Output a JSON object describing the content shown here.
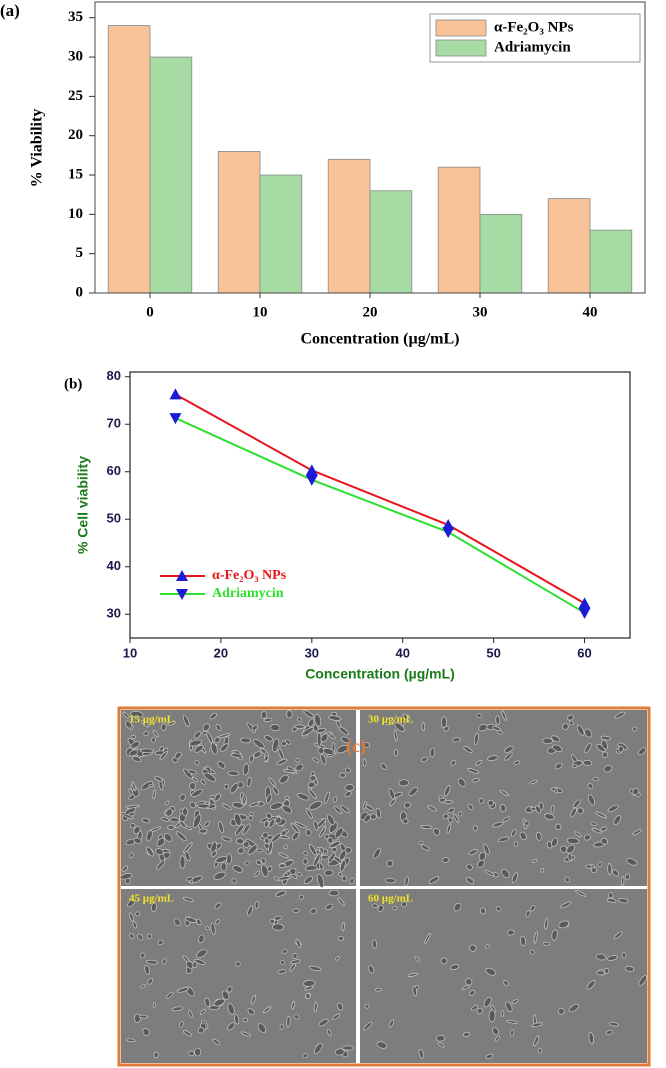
{
  "chart_data": [
    {
      "type": "bar",
      "panel_label": "(a)",
      "categories": [
        "0",
        "10",
        "20",
        "30",
        "40"
      ],
      "series": [
        {
          "name": "α-Fe₂O₃ NPs",
          "color": "#f9c39a",
          "values": [
            34,
            18,
            17,
            16,
            12
          ]
        },
        {
          "name": "Adriamycin",
          "color": "#a6dba4",
          "values": [
            30,
            15,
            13,
            10,
            8
          ]
        }
      ],
      "ylim": [
        0,
        37
      ],
      "yticks": [
        0,
        5,
        10,
        15,
        20,
        25,
        30,
        35
      ],
      "x_label": "Concentration (µg/mL)",
      "y_label": "% Viability",
      "legend": "upper right"
    },
    {
      "type": "line",
      "panel_label": "(b)",
      "x": [
        15,
        30,
        45,
        60
      ],
      "series": [
        {
          "name": "α-Fe₂O₃ NPs",
          "color": "#e8141c",
          "marker": "triangle-up",
          "marker_color": "#1c1cd6",
          "values": [
            76.3,
            60.3,
            48.8,
            32.3
          ]
        },
        {
          "name": "Adriamycin",
          "color": "#2ee02e",
          "marker": "triangle-down",
          "marker_color": "#1c1cd6",
          "values": [
            71.3,
            58.3,
            47.3,
            30.3
          ]
        }
      ],
      "xlim": [
        10,
        65
      ],
      "xticks": [
        10,
        20,
        30,
        40,
        50,
        60
      ],
      "ylim": [
        25,
        81
      ],
      "yticks": [
        30,
        40,
        50,
        60,
        70,
        80
      ],
      "x_label": "Concentration (µg/mL)",
      "y_label": "% Cell viability",
      "label_color": "#1a7a1a",
      "tick_color": "#1a1a4a",
      "legend": "lower left"
    }
  ],
  "micrographs": {
    "label": "(c)",
    "panels": [
      "15 µg/mL",
      "30 µg/mL",
      "45 µg/mL",
      "60 µg/mL"
    ]
  }
}
